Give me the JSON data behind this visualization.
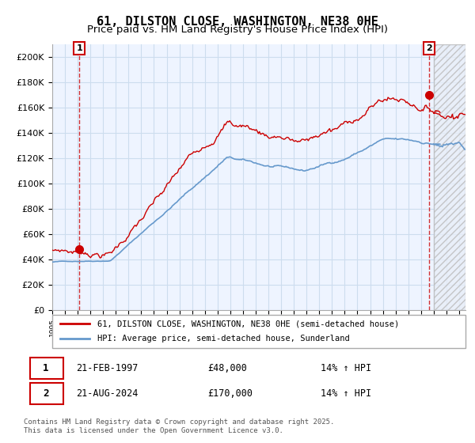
{
  "title": "61, DILSTON CLOSE, WASHINGTON, NE38 0HE",
  "subtitle": "Price paid vs. HM Land Registry's House Price Index (HPI)",
  "ylim": [
    0,
    210000
  ],
  "yticks": [
    0,
    20000,
    40000,
    60000,
    80000,
    100000,
    120000,
    140000,
    160000,
    180000,
    200000
  ],
  "ytick_labels": [
    "£0",
    "£20K",
    "£40K",
    "£60K",
    "£80K",
    "£100K",
    "£120K",
    "£140K",
    "£160K",
    "£180K",
    "£200K"
  ],
  "xlim_start": 1995.0,
  "xlim_end": 2027.5,
  "xtick_years": [
    1995,
    1996,
    1997,
    1998,
    1999,
    2000,
    2001,
    2002,
    2003,
    2004,
    2005,
    2006,
    2007,
    2008,
    2009,
    2010,
    2011,
    2012,
    2013,
    2014,
    2015,
    2016,
    2017,
    2018,
    2019,
    2020,
    2021,
    2022,
    2023,
    2024,
    2025,
    2026,
    2027
  ],
  "transaction1_date": 1997.13,
  "transaction1_price": 48000,
  "transaction2_date": 2024.64,
  "transaction2_price": 170000,
  "hpi_line_color": "#6699cc",
  "price_line_color": "#cc0000",
  "dashed_line_color": "#cc0000",
  "annotation_box_color": "#cc0000",
  "grid_color": "#ccddee",
  "plot_bg_color": "#eef4ff",
  "legend_line1": "61, DILSTON CLOSE, WASHINGTON, NE38 0HE (semi-detached house)",
  "legend_line2": "HPI: Average price, semi-detached house, Sunderland",
  "table_row1": [
    "1",
    "21-FEB-1997",
    "£48,000",
    "14% ↑ HPI"
  ],
  "table_row2": [
    "2",
    "21-AUG-2024",
    "£170,000",
    "14% ↑ HPI"
  ],
  "footnote": "Contains HM Land Registry data © Crown copyright and database right 2025.\nThis data is licensed under the Open Government Licence v3.0.",
  "title_fontsize": 11,
  "subtitle_fontsize": 9.5
}
